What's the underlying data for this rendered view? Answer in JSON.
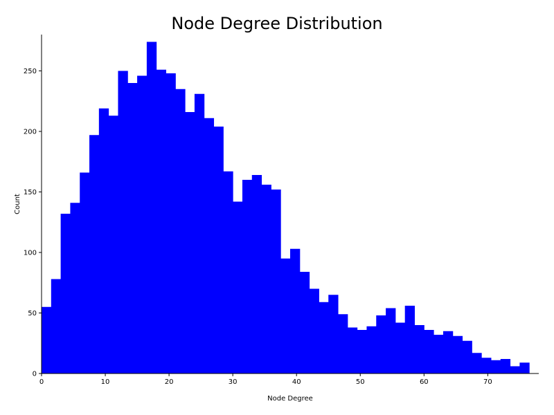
{
  "chart_data": {
    "type": "bar",
    "title": "Node Degree Distribution",
    "xlabel": "Node Degree",
    "ylabel": "Count",
    "bin_width": 1.5,
    "bin_start": 0,
    "xlim": [
      0,
      78
    ],
    "ylim": [
      0,
      280
    ],
    "xticks": [
      0,
      10,
      20,
      30,
      40,
      50,
      60,
      70
    ],
    "yticks": [
      0,
      50,
      100,
      150,
      200,
      250
    ],
    "grid": false,
    "legend": "none",
    "bar_color": "#0000ff",
    "values": [
      55,
      78,
      132,
      141,
      166,
      197,
      219,
      213,
      250,
      240,
      246,
      274,
      251,
      248,
      235,
      216,
      231,
      211,
      204,
      167,
      142,
      160,
      164,
      156,
      152,
      95,
      103,
      84,
      70,
      59,
      65,
      49,
      38,
      36,
      39,
      48,
      54,
      42,
      56,
      40,
      36,
      32,
      35,
      31,
      27,
      17,
      13,
      11,
      12,
      6,
      9
    ]
  }
}
